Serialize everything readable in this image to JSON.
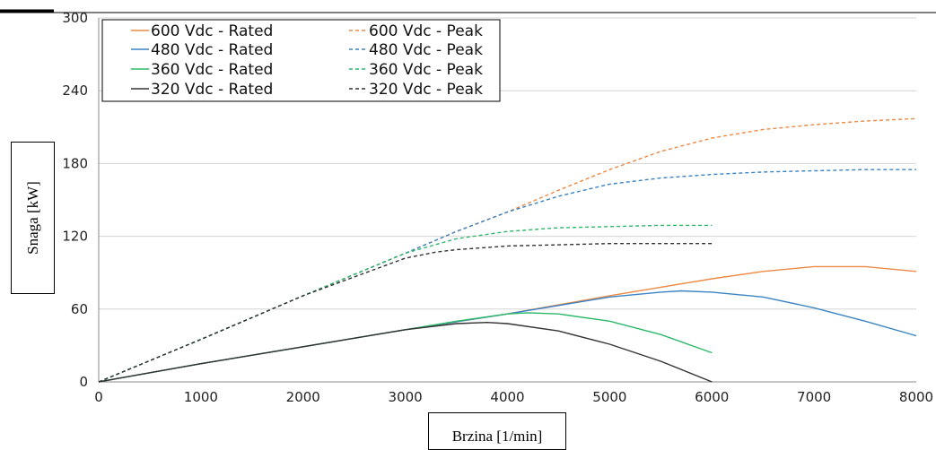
{
  "chart_data": {
    "type": "line",
    "title": "",
    "xlabel": "Brzina [1/min]",
    "ylabel": "Snaga [kW]",
    "xlim": [
      0,
      8000
    ],
    "ylim": [
      0,
      300
    ],
    "xticks": [
      0,
      1000,
      2000,
      3000,
      4000,
      5000,
      6000,
      7000,
      8000
    ],
    "yticks": [
      0,
      60,
      120,
      180,
      240,
      300
    ],
    "grid": "horizontal",
    "legend_position": "top-left",
    "series": [
      {
        "name": "600 Vdc - Rated",
        "color": "#ED8A45",
        "dash": false,
        "x": [
          0,
          1000,
          2000,
          3000,
          4000,
          5000,
          5500,
          6000,
          6500,
          7000,
          7500,
          8000
        ],
        "y": [
          0,
          15,
          29,
          43,
          56,
          71,
          78,
          85,
          91,
          95,
          95,
          91
        ]
      },
      {
        "name": "600 Vdc - Peak",
        "color": "#ED8A45",
        "dash": true,
        "x": [
          0,
          1000,
          2000,
          3000,
          3500,
          4000,
          4500,
          5000,
          5500,
          6000,
          6500,
          7000,
          7500,
          8000
        ],
        "y": [
          0,
          35,
          71,
          106,
          124,
          140,
          158,
          175,
          190,
          201,
          208,
          212,
          215,
          217
        ]
      },
      {
        "name": "480 Vdc - Rated",
        "color": "#3B84C4",
        "dash": false,
        "x": [
          0,
          1000,
          2000,
          3000,
          4000,
          5000,
          5500,
          5700,
          6000,
          6500,
          7000,
          7500,
          8000
        ],
        "y": [
          0,
          15,
          29,
          43,
          56,
          70,
          74,
          75,
          74,
          70,
          61,
          50,
          38
        ]
      },
      {
        "name": "480 Vdc - Peak",
        "color": "#3B84C4",
        "dash": true,
        "x": [
          0,
          1000,
          2000,
          3000,
          3500,
          4000,
          4500,
          5000,
          5500,
          6000,
          6500,
          7000,
          7500,
          8000
        ],
        "y": [
          0,
          35,
          71,
          106,
          124,
          140,
          153,
          163,
          168,
          171,
          173,
          174,
          175,
          175
        ]
      },
      {
        "name": "360 Vdc - Rated",
        "color": "#2DB86A",
        "dash": false,
        "x": [
          0,
          1000,
          2000,
          3000,
          3500,
          4000,
          4200,
          4500,
          5000,
          5500,
          6000
        ],
        "y": [
          0,
          15,
          29,
          43,
          50,
          56,
          57,
          56,
          50,
          39,
          24
        ]
      },
      {
        "name": "360 Vdc - Peak",
        "color": "#2DB86A",
        "dash": true,
        "x": [
          0,
          1000,
          2000,
          3000,
          3500,
          4000,
          4500,
          5000,
          5500,
          6000
        ],
        "y": [
          0,
          35,
          71,
          106,
          118,
          124,
          127,
          128,
          129,
          129
        ]
      },
      {
        "name": "320 Vdc - Rated",
        "color": "#333333",
        "dash": false,
        "x": [
          0,
          1000,
          2000,
          3000,
          3500,
          3800,
          4000,
          4500,
          5000,
          5500,
          6000
        ],
        "y": [
          0,
          15,
          29,
          43,
          48,
          49,
          48,
          42,
          31,
          17,
          0
        ]
      },
      {
        "name": "320 Vdc - Peak",
        "color": "#333333",
        "dash": true,
        "x": [
          0,
          1000,
          2000,
          3000,
          3300,
          3500,
          4000,
          4500,
          5000,
          5500,
          6000
        ],
        "y": [
          0,
          35,
          71,
          102,
          107,
          109,
          112,
          113,
          114,
          114,
          114
        ]
      }
    ]
  }
}
